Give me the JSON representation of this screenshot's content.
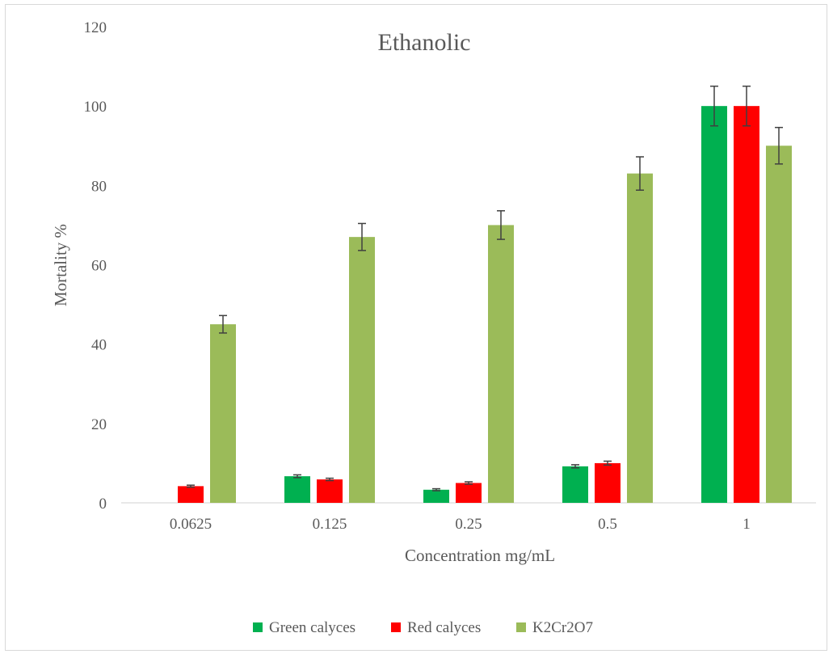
{
  "chart_data": {
    "type": "bar",
    "title": "Ethanolic",
    "xlabel": "Concentration mg/mL",
    "ylabel": "Mortality %",
    "categories": [
      "0.0625",
      "0.125",
      "0.25",
      "0.5",
      "1"
    ],
    "ylim": [
      0,
      120
    ],
    "yticks": [
      0,
      20,
      40,
      60,
      80,
      100,
      120
    ],
    "grid": false,
    "legend_position": "bottom",
    "series": [
      {
        "name": "Green calyces",
        "color": "#00b050",
        "values": [
          0,
          6.7,
          3.3,
          9.2,
          100
        ],
        "errors": [
          0,
          0.35,
          0.25,
          0.4,
          5
        ]
      },
      {
        "name": "Red calyces",
        "color": "#ff0000",
        "values": [
          4.2,
          5.9,
          5.0,
          10,
          100
        ],
        "errors": [
          0.25,
          0.3,
          0.3,
          0.5,
          5
        ]
      },
      {
        "name": "K2Cr2O7",
        "color": "#9bbb59",
        "values": [
          45,
          67,
          70,
          83,
          90
        ],
        "errors": [
          2.2,
          3.4,
          3.6,
          4.2,
          4.6
        ]
      }
    ]
  }
}
